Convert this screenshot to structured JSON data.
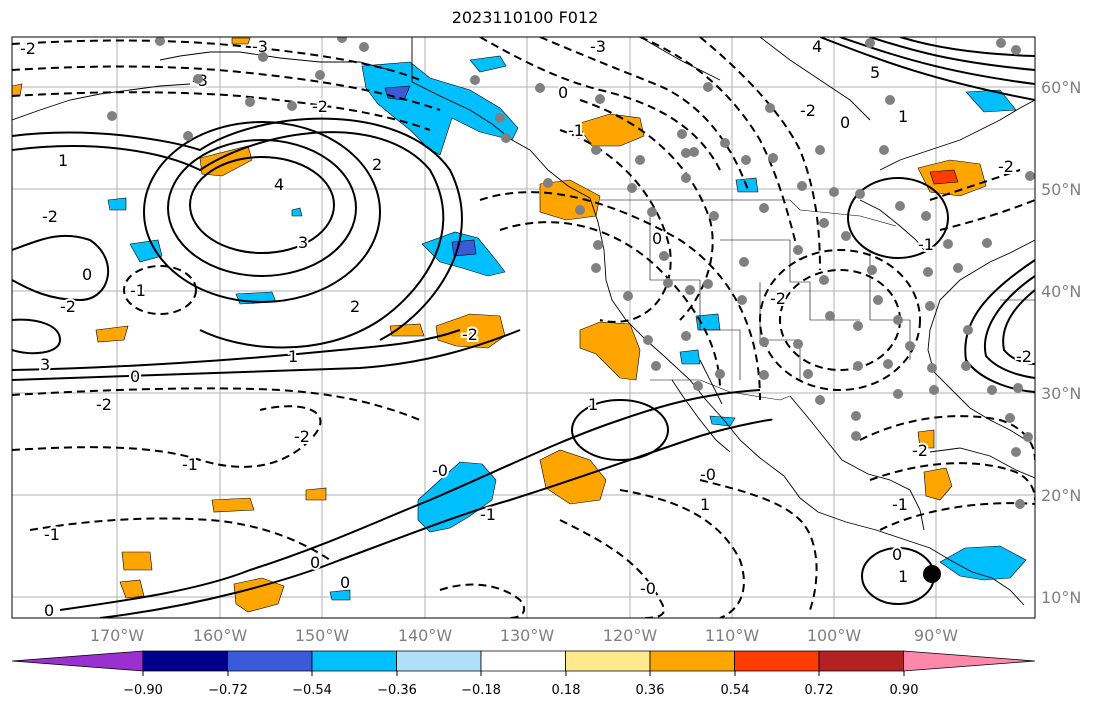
{
  "title": "2023110100 F012",
  "lon_labels": [
    "170°W",
    "160°W",
    "150°W",
    "140°W",
    "130°W",
    "120°W",
    "110°W",
    "100°W",
    "90°W"
  ],
  "lat_labels": [
    "60°N",
    "50°N",
    "40°N",
    "30°N",
    "20°N",
    "10°N"
  ],
  "colorbar": {
    "colors": [
      "#9b30d0",
      "#00008b",
      "#3a5bd9",
      "#00bfff",
      "#b0e0f8",
      "#ffffff",
      "#ffe98c",
      "#ffa500",
      "#ff3c00",
      "#b22222",
      "#ff88aa"
    ],
    "tick_labels": [
      "−0.90",
      "−0.72",
      "−0.54",
      "−0.36",
      "−0.18",
      "0.18",
      "0.36",
      "0.54",
      "0.72",
      "0.90"
    ]
  },
  "contour_labels": [
    {
      "text": "-2"
    },
    {
      "text": "-3"
    },
    {
      "text": "-3"
    },
    {
      "text": "-3"
    },
    {
      "text": "-2"
    },
    {
      "text": "0"
    },
    {
      "text": "-1"
    },
    {
      "text": "1"
    },
    {
      "text": "2"
    },
    {
      "text": "4"
    },
    {
      "text": "3"
    },
    {
      "text": "-2"
    },
    {
      "text": "-1"
    },
    {
      "text": "0"
    },
    {
      "text": "1"
    },
    {
      "text": "2"
    },
    {
      "text": "3"
    },
    {
      "text": "-2"
    },
    {
      "text": "0"
    },
    {
      "text": "-2"
    },
    {
      "text": "-2"
    },
    {
      "text": "-1"
    },
    {
      "text": "0"
    },
    {
      "text": "-1"
    },
    {
      "text": "0"
    },
    {
      "text": "0"
    },
    {
      "text": "-1"
    },
    {
      "text": "1"
    },
    {
      "text": "-0"
    },
    {
      "text": "-2"
    },
    {
      "text": "4"
    },
    {
      "text": "5"
    },
    {
      "text": "0"
    },
    {
      "text": "-2"
    },
    {
      "text": "0"
    },
    {
      "text": "-2"
    },
    {
      "text": "1"
    },
    {
      "text": "-2"
    },
    {
      "text": "-2"
    },
    {
      "text": "-1"
    },
    {
      "text": "-0"
    },
    {
      "text": "-2"
    },
    {
      "text": "1"
    },
    {
      "text": "0"
    },
    {
      "text": "-0"
    },
    {
      "text": "1"
    },
    {
      "text": "-1"
    }
  ]
}
